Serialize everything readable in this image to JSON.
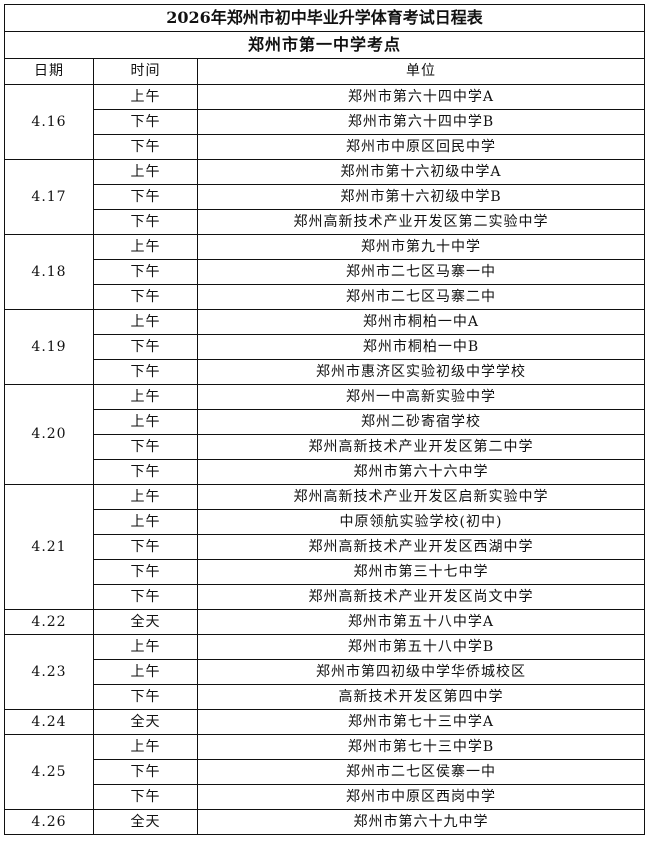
{
  "title": "2026年郑州市初中毕业升学体育考试日程表",
  "subtitle": "郑州市第一中学考点",
  "headers": {
    "date": "日期",
    "time": "时间",
    "unit": "单位"
  },
  "schedule": [
    {
      "date": "4.16",
      "slots": [
        {
          "time": "上午",
          "unit": "郑州市第六十四中学A"
        },
        {
          "time": "下午",
          "unit": "郑州市第六十四中学B"
        },
        {
          "time": "下午",
          "unit": "郑州市中原区回民中学"
        }
      ]
    },
    {
      "date": "4.17",
      "slots": [
        {
          "time": "上午",
          "unit": "郑州市第十六初级中学A"
        },
        {
          "time": "下午",
          "unit": "郑州市第十六初级中学B"
        },
        {
          "time": "下午",
          "unit": "郑州高新技术产业开发区第二实验中学"
        }
      ]
    },
    {
      "date": "4.18",
      "slots": [
        {
          "time": "上午",
          "unit": "郑州市第九十中学"
        },
        {
          "time": "下午",
          "unit": "郑州市二七区马寨一中"
        },
        {
          "time": "下午",
          "unit": "郑州市二七区马寨二中"
        }
      ]
    },
    {
      "date": "4.19",
      "slots": [
        {
          "time": "上午",
          "unit": "郑州市桐柏一中A"
        },
        {
          "time": "下午",
          "unit": "郑州市桐柏一中B"
        },
        {
          "time": "下午",
          "unit": "郑州市惠济区实验初级中学学校"
        }
      ]
    },
    {
      "date": "4.20",
      "slots": [
        {
          "time": "上午",
          "unit": "郑州一中高新实验中学"
        },
        {
          "time": "上午",
          "unit": "郑州二砂寄宿学校"
        },
        {
          "time": "下午",
          "unit": "郑州高新技术产业开发区第二中学"
        },
        {
          "time": "下午",
          "unit": "郑州市第六十六中学"
        }
      ]
    },
    {
      "date": "4.21",
      "slots": [
        {
          "time": "上午",
          "unit": "郑州高新技术产业开发区启新实验中学"
        },
        {
          "time": "上午",
          "unit": "中原领航实验学校(初中)"
        },
        {
          "time": "下午",
          "unit": "郑州高新技术产业开发区西湖中学"
        },
        {
          "time": "下午",
          "unit": "郑州市第三十七中学"
        },
        {
          "time": "下午",
          "unit": "郑州高新技术产业开发区尚文中学"
        }
      ]
    },
    {
      "date": "4.22",
      "slots": [
        {
          "time": "全天",
          "unit": "郑州市第五十八中学A"
        }
      ]
    },
    {
      "date": "4.23",
      "slots": [
        {
          "time": "上午",
          "unit": "郑州市第五十八中学B"
        },
        {
          "time": "上午",
          "unit": "郑州市第四初级中学华侨城校区"
        },
        {
          "time": "下午",
          "unit": "高新技术开发区第四中学"
        }
      ]
    },
    {
      "date": "4.24",
      "slots": [
        {
          "time": "全天",
          "unit": "郑州市第七十三中学A"
        }
      ]
    },
    {
      "date": "4.25",
      "slots": [
        {
          "time": "上午",
          "unit": "郑州市第七十三中学B"
        },
        {
          "time": "下午",
          "unit": "郑州市二七区侯寨一中"
        },
        {
          "time": "下午",
          "unit": "郑州市中原区西岗中学"
        }
      ]
    },
    {
      "date": "4.26",
      "slots": [
        {
          "time": "全天",
          "unit": "郑州市第六十九中学"
        }
      ]
    }
  ]
}
